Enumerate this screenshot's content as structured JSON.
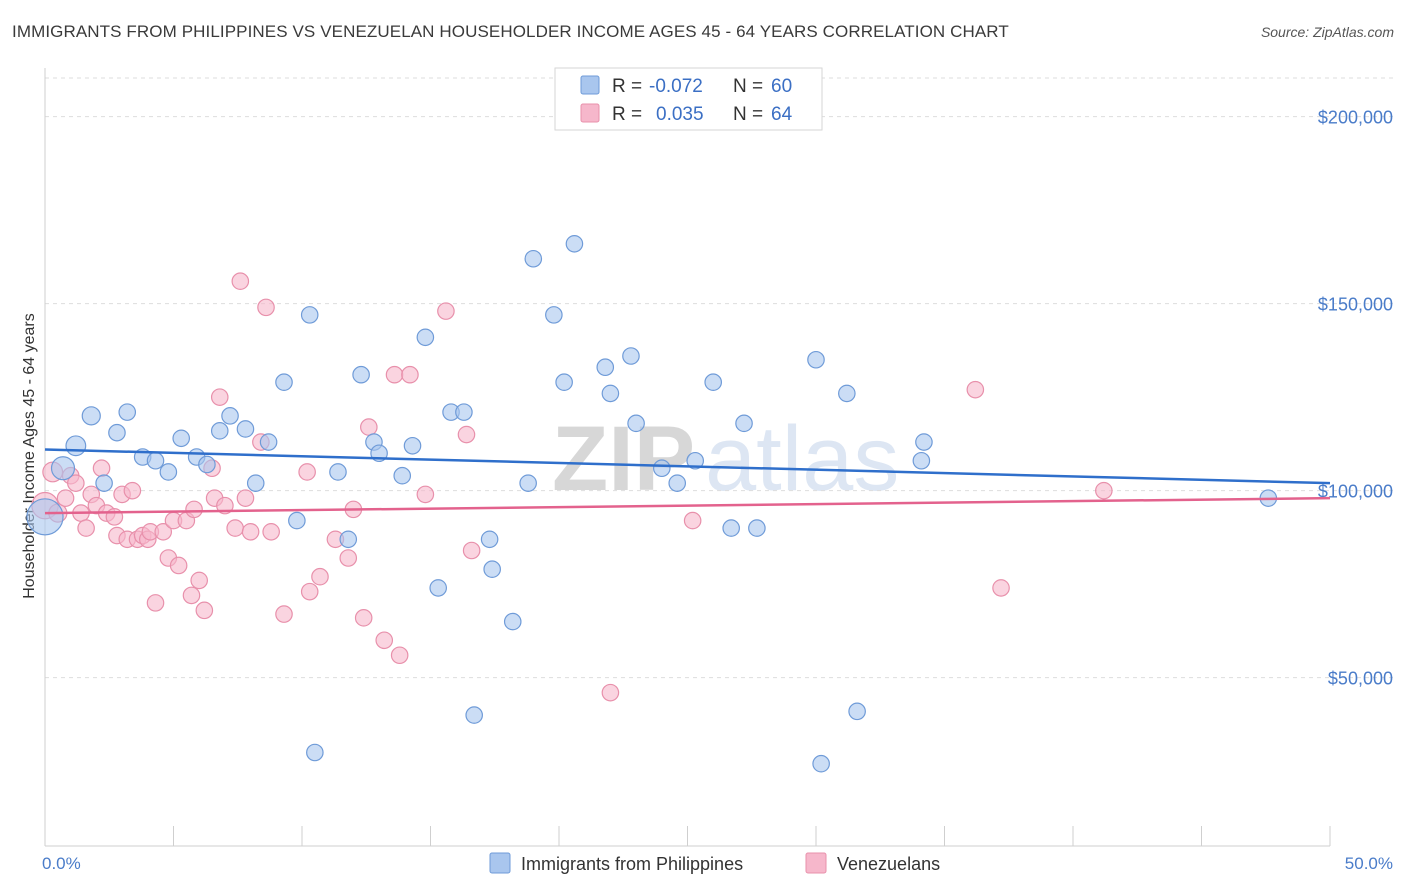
{
  "title": "IMMIGRANTS FROM PHILIPPINES VS VENEZUELAN HOUSEHOLDER INCOME AGES 45 - 64 YEARS CORRELATION CHART",
  "source": "Source: ZipAtlas.com",
  "watermark": {
    "zip": "ZIP",
    "atlas": "atlas"
  },
  "legend": {
    "r_label": "R =",
    "n_label": "N =",
    "rows": [
      {
        "r": "-0.072",
        "n": "60",
        "color": "#a9c6ee"
      },
      {
        "r": "0.035",
        "n": "64",
        "color": "#f6b7cb"
      }
    ]
  },
  "bottom_legend": [
    {
      "label": "Immigrants from Philippines",
      "color": "#a9c6ee"
    },
    {
      "label": "Venezuelans",
      "color": "#f6b7cb"
    }
  ],
  "colors": {
    "philippines_fill": "#a9c6ee",
    "philippines_stroke": "#6f9bd8",
    "philippines_line": "#2f6fcb",
    "venezuela_fill": "#f6b7cb",
    "venezuela_stroke": "#e890ab",
    "venezuela_line": "#e3628d",
    "tick_label": "#4a7cc9",
    "grid": "#dddddd"
  },
  "chart_data": {
    "type": "scatter",
    "title": "IMMIGRANTS FROM PHILIPPINES VS VENEZUELAN HOUSEHOLDER INCOME AGES 45 - 64 YEARS CORRELATION CHART",
    "xlabel": "",
    "ylabel": "Householder Income Ages 45 - 64 years",
    "xlim": [
      0,
      50
    ],
    "ylim": [
      5000,
      213000
    ],
    "x_tick_labels": [
      "0.0%",
      "50.0%"
    ],
    "y_ticks": [
      50000,
      100000,
      150000,
      200000
    ],
    "y_tick_labels": [
      "$50,000",
      "$100,000",
      "$150,000",
      "$200,000"
    ],
    "grid": "horizontal dashed",
    "legend_position": "top-center",
    "series": [
      {
        "name": "Immigrants from Philippines",
        "trend": [
          [
            0,
            111000
          ],
          [
            50,
            102000
          ]
        ],
        "points": [
          [
            0.0,
            93000,
            22
          ],
          [
            0.7,
            106000,
            14
          ],
          [
            1.2,
            112000,
            12
          ],
          [
            1.8,
            120000,
            11
          ],
          [
            2.3,
            102000,
            10
          ],
          [
            2.8,
            115500,
            10
          ],
          [
            3.2,
            121000,
            10
          ],
          [
            3.8,
            109000,
            10
          ],
          [
            4.3,
            108000,
            10
          ],
          [
            4.8,
            105000,
            10
          ],
          [
            5.3,
            114000,
            10
          ],
          [
            5.9,
            109000,
            10
          ],
          [
            6.3,
            107000,
            10
          ],
          [
            6.8,
            116000,
            10
          ],
          [
            7.2,
            120000,
            10
          ],
          [
            7.8,
            116500,
            10
          ],
          [
            8.2,
            102000,
            10
          ],
          [
            8.7,
            113000,
            10
          ],
          [
            9.3,
            129000,
            10
          ],
          [
            9.8,
            92000,
            10
          ],
          [
            10.3,
            147000,
            10
          ],
          [
            10.5,
            30000,
            10
          ],
          [
            11.4,
            105000,
            10
          ],
          [
            11.8,
            87000,
            10
          ],
          [
            12.3,
            131000,
            10
          ],
          [
            12.8,
            113000,
            10
          ],
          [
            13.0,
            110000,
            10
          ],
          [
            13.9,
            104000,
            10
          ],
          [
            14.3,
            112000,
            10
          ],
          [
            14.8,
            141000,
            10
          ],
          [
            15.3,
            74000,
            10
          ],
          [
            15.8,
            121000,
            10
          ],
          [
            16.3,
            121000,
            10
          ],
          [
            16.7,
            40000,
            10
          ],
          [
            17.3,
            87000,
            10
          ],
          [
            17.4,
            79000,
            10
          ],
          [
            18.2,
            65000,
            10
          ],
          [
            18.8,
            102000,
            10
          ],
          [
            19.0,
            162000,
            10
          ],
          [
            19.8,
            147000,
            10
          ],
          [
            20.2,
            129000,
            10
          ],
          [
            20.6,
            166000,
            10
          ],
          [
            21.8,
            133000,
            10
          ],
          [
            22.0,
            126000,
            10
          ],
          [
            22.8,
            136000,
            10
          ],
          [
            23.0,
            118000,
            10
          ],
          [
            24.0,
            106000,
            10
          ],
          [
            24.6,
            102000,
            10
          ],
          [
            25.3,
            108000,
            10
          ],
          [
            26.0,
            129000,
            10
          ],
          [
            26.7,
            90000,
            10
          ],
          [
            27.2,
            118000,
            10
          ],
          [
            27.7,
            90000,
            10
          ],
          [
            30.0,
            135000,
            10
          ],
          [
            30.2,
            27000,
            10
          ],
          [
            31.2,
            126000,
            10
          ],
          [
            31.6,
            41000,
            10
          ],
          [
            34.2,
            113000,
            10
          ],
          [
            34.1,
            108000,
            10
          ],
          [
            47.6,
            98000,
            10
          ]
        ]
      },
      {
        "name": "Venezuelans",
        "trend": [
          [
            0,
            94000
          ],
          [
            50,
            98000
          ]
        ],
        "points": [
          [
            0.0,
            96000,
            16
          ],
          [
            0.3,
            105000,
            12
          ],
          [
            0.5,
            94000,
            11
          ],
          [
            0.8,
            98000,
            10
          ],
          [
            1.0,
            104000,
            10
          ],
          [
            1.2,
            102000,
            10
          ],
          [
            1.4,
            94000,
            10
          ],
          [
            1.6,
            90000,
            10
          ],
          [
            1.8,
            99000,
            10
          ],
          [
            2.0,
            96000,
            10
          ],
          [
            2.2,
            106000,
            10
          ],
          [
            2.4,
            94000,
            10
          ],
          [
            2.7,
            93000,
            10
          ],
          [
            2.8,
            88000,
            10
          ],
          [
            3.0,
            99000,
            10
          ],
          [
            3.2,
            87000,
            10
          ],
          [
            3.4,
            100000,
            10
          ],
          [
            3.6,
            87000,
            10
          ],
          [
            3.8,
            88000,
            10
          ],
          [
            4.0,
            87000,
            10
          ],
          [
            4.1,
            89000,
            10
          ],
          [
            4.3,
            70000,
            10
          ],
          [
            4.6,
            89000,
            10
          ],
          [
            4.8,
            82000,
            10
          ],
          [
            5.0,
            92000,
            10
          ],
          [
            5.2,
            80000,
            10
          ],
          [
            5.5,
            92000,
            10
          ],
          [
            5.7,
            72000,
            10
          ],
          [
            5.8,
            95000,
            10
          ],
          [
            6.0,
            76000,
            10
          ],
          [
            6.2,
            68000,
            10
          ],
          [
            6.5,
            106000,
            10
          ],
          [
            6.6,
            98000,
            10
          ],
          [
            6.8,
            125000,
            10
          ],
          [
            7.0,
            96000,
            10
          ],
          [
            7.4,
            90000,
            10
          ],
          [
            7.6,
            156000,
            10
          ],
          [
            7.8,
            98000,
            10
          ],
          [
            8.0,
            89000,
            10
          ],
          [
            8.4,
            113000,
            10
          ],
          [
            8.6,
            149000,
            10
          ],
          [
            8.8,
            89000,
            10
          ],
          [
            9.3,
            67000,
            10
          ],
          [
            10.2,
            105000,
            10
          ],
          [
            10.3,
            73000,
            10
          ],
          [
            10.7,
            77000,
            10
          ],
          [
            11.3,
            87000,
            10
          ],
          [
            11.8,
            82000,
            10
          ],
          [
            12.0,
            95000,
            10
          ],
          [
            12.4,
            66000,
            10
          ],
          [
            12.6,
            117000,
            10
          ],
          [
            13.2,
            60000,
            10
          ],
          [
            13.6,
            131000,
            10
          ],
          [
            13.8,
            56000,
            10
          ],
          [
            14.2,
            131000,
            10
          ],
          [
            14.8,
            99000,
            10
          ],
          [
            15.6,
            148000,
            10
          ],
          [
            16.4,
            115000,
            10
          ],
          [
            16.6,
            84000,
            10
          ],
          [
            22.0,
            46000,
            10
          ],
          [
            25.2,
            92000,
            10
          ],
          [
            36.2,
            127000,
            10
          ],
          [
            37.2,
            74000,
            10
          ],
          [
            41.2,
            100000,
            10
          ]
        ]
      }
    ]
  }
}
